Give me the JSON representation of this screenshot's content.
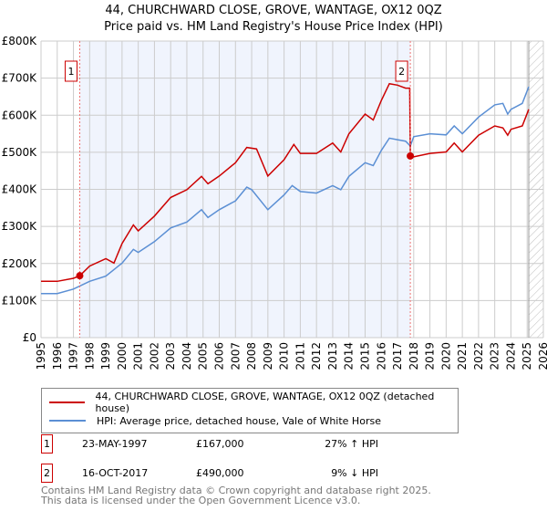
{
  "chart_data": {
    "type": "line",
    "title": "44, CHURCHWARD CLOSE, GROVE, WANTAGE, OX12 0QZ",
    "subtitle": "Price paid vs. HM Land Registry's House Price Index (HPI)",
    "xlabel": "",
    "ylabel": "",
    "xlim": [
      1995,
      2026
    ],
    "ylim": [
      0,
      800000
    ],
    "y_ticks": [
      "£0",
      "£100K",
      "£200K",
      "£300K",
      "£400K",
      "£500K",
      "£600K",
      "£700K",
      "£800K"
    ],
    "x_ticks": [
      "1995",
      "1996",
      "1997",
      "1998",
      "1999",
      "2000",
      "2001",
      "2002",
      "2003",
      "2004",
      "2005",
      "2006",
      "2007",
      "2008",
      "2009",
      "2010",
      "2011",
      "2012",
      "2013",
      "2014",
      "2015",
      "2016",
      "2017",
      "2018",
      "2019",
      "2020",
      "2021",
      "2022",
      "2023",
      "2024",
      "2025",
      "2026"
    ],
    "grid": true,
    "shaded_range": [
      1997.39,
      2017.79
    ],
    "forecast_hatch_from": 2025.1,
    "series": [
      {
        "name": "44, CHURCHWARD CLOSE, GROVE, WANTAGE, OX12 0QZ (detached house)",
        "color": "#cc0000",
        "x": [
          1995,
          1996,
          1997,
          1997.39,
          1998,
          1999,
          1999.5,
          2000,
          2000.7,
          2001,
          2002,
          2003,
          2004,
          2004.9,
          2005.3,
          2006,
          2007,
          2007.7,
          2008.3,
          2009,
          2010,
          2010.6,
          2011,
          2012,
          2013,
          2013.5,
          2014,
          2015,
          2015.5,
          2016,
          2016.5,
          2017,
          2017.5,
          2017.75,
          2017.79,
          2018,
          2019,
          2020,
          2020.5,
          2021,
          2022,
          2023,
          2023.5,
          2023.8,
          2024,
          2024.7,
          2025.1
        ],
        "y": [
          152000,
          152000,
          160000,
          167000,
          193000,
          213000,
          201000,
          254000,
          304000,
          288000,
          328000,
          378000,
          399000,
          435000,
          415000,
          436000,
          472000,
          513000,
          509000,
          436000,
          480000,
          521000,
          497000,
          497000,
          525000,
          501000,
          550000,
          603000,
          587000,
          640000,
          685000,
          681000,
          673000,
          673000,
          490000,
          488000,
          497000,
          501000,
          525000,
          501000,
          546000,
          571000,
          566000,
          546000,
          562000,
          571000,
          616000
        ]
      },
      {
        "name": "HPI: Average price, detached house, Vale of White Horse",
        "color": "#5b8fd4",
        "x": [
          1995,
          1996,
          1997,
          1998,
          1999,
          2000,
          2000.7,
          2001,
          2002,
          2003,
          2004,
          2004.9,
          2005.3,
          2006,
          2007,
          2007.7,
          2008,
          2009,
          2010,
          2010.5,
          2011,
          2012,
          2013,
          2013.5,
          2014,
          2015,
          2015.5,
          2016,
          2016.5,
          2017,
          2017.5,
          2017.79,
          2018,
          2019,
          2020,
          2020.5,
          2021,
          2022,
          2023,
          2023.5,
          2023.8,
          2024,
          2024.7,
          2025.1
        ],
        "y": [
          119000,
          119000,
          131000,
          152000,
          166000,
          201000,
          238000,
          230000,
          259000,
          296000,
          312000,
          345000,
          324000,
          345000,
          369000,
          406000,
          399000,
          345000,
          385000,
          410000,
          394000,
          390000,
          410000,
          399000,
          435000,
          472000,
          464000,
          505000,
          538000,
          534000,
          530000,
          517000,
          542000,
          550000,
          547000,
          571000,
          550000,
          595000,
          628000,
          632000,
          603000,
          616000,
          632000,
          677000
        ]
      }
    ],
    "annotations": [
      {
        "label": "1",
        "x": 1997.39,
        "y": 167000
      },
      {
        "label": "2",
        "x": 2017.79,
        "y": 490000
      }
    ]
  },
  "legend": {
    "items": [
      "44, CHURCHWARD CLOSE, GROVE, WANTAGE, OX12 0QZ (detached house)",
      "HPI: Average price, detached house, Vale of White Horse"
    ]
  },
  "transactions": [
    {
      "num": "1",
      "date": "23-MAY-1997",
      "price": "£167,000",
      "hpi": "27% ↑ HPI"
    },
    {
      "num": "2",
      "date": "16-OCT-2017",
      "price": "£490,000",
      "hpi": "9% ↓ HPI"
    }
  ],
  "footer": {
    "line1": "Contains HM Land Registry data © Crown copyright and database right 2025.",
    "line2": "This data is licensed under the Open Government Licence v3.0."
  }
}
